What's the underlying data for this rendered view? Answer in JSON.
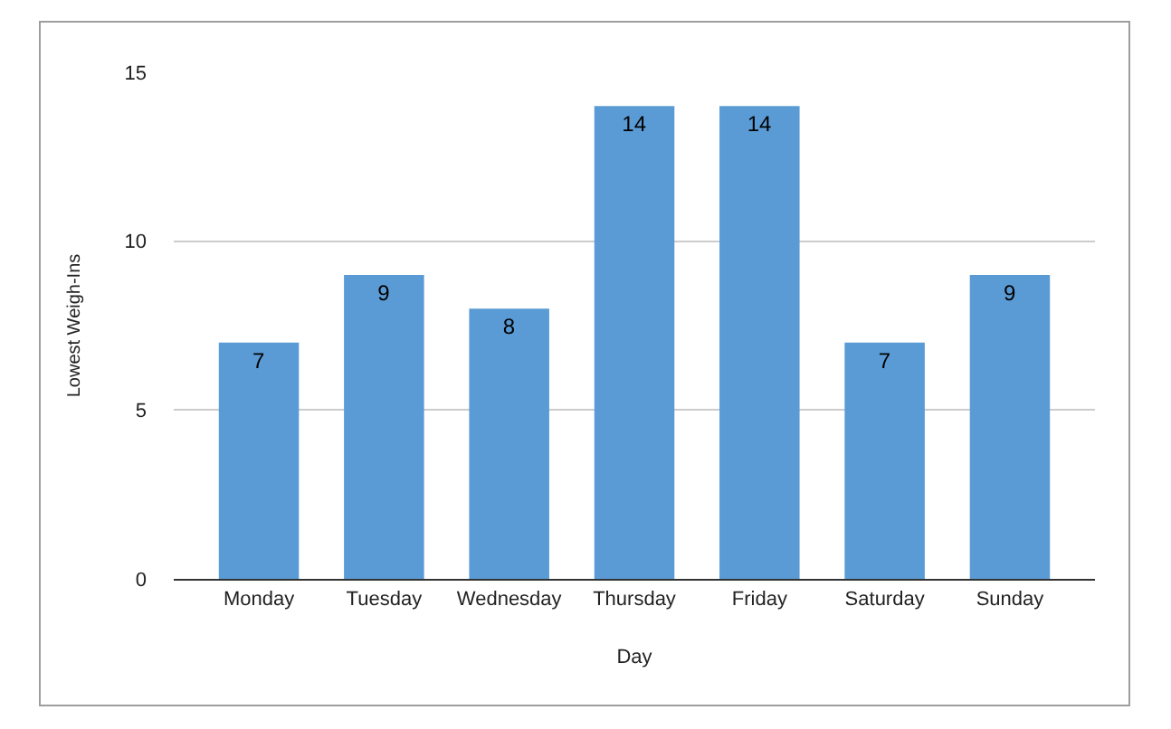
{
  "chart_data": {
    "type": "bar",
    "xlabel": "Day",
    "ylabel": "Lowest Weigh-Ins",
    "categories": [
      "Monday",
      "Tuesday",
      "Wednesday",
      "Thursday",
      "Friday",
      "Saturday",
      "Sunday"
    ],
    "values": [
      7,
      9,
      8,
      14,
      14,
      7,
      9
    ],
    "color": "#5b9bd5",
    "ylim": [
      0,
      15
    ],
    "yticks": [
      0,
      5,
      10,
      15
    ],
    "grid": "y",
    "data_labels": true
  }
}
